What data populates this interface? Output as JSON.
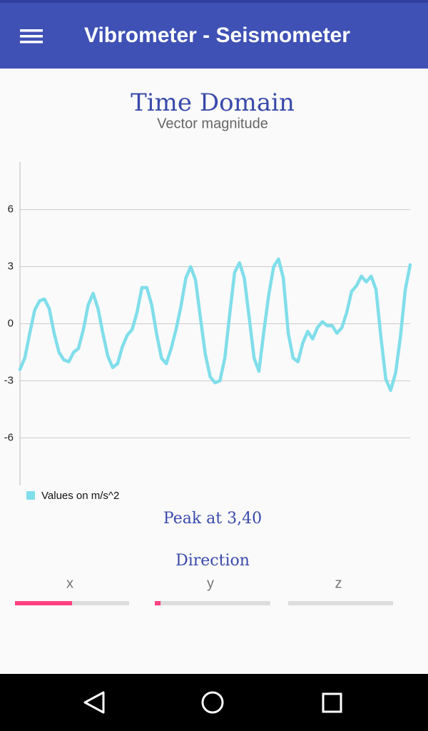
{
  "app_bar": {
    "title": "Vibrometer - Seismometer"
  },
  "chart_data": {
    "type": "line",
    "title": "Time Domain",
    "subtitle": "Vector magnitude",
    "series": [
      {
        "name": "Values on m/s^2",
        "color": "#80deea",
        "values": [
          -2.4,
          -1.8,
          -0.5,
          0.7,
          1.2,
          1.3,
          0.8,
          -0.5,
          -1.5,
          -1.9,
          -2.0,
          -1.5,
          -1.3,
          -0.3,
          1.0,
          1.6,
          0.8,
          -0.5,
          -1.7,
          -2.3,
          -2.1,
          -1.2,
          -0.6,
          -0.3,
          0.6,
          1.9,
          1.9,
          1.0,
          -0.5,
          -1.8,
          -2.1,
          -1.3,
          -0.3,
          0.9,
          2.4,
          3.0,
          2.3,
          0.3,
          -1.6,
          -2.8,
          -3.1,
          -3.0,
          -1.8,
          0.5,
          2.7,
          3.2,
          2.4,
          0.3,
          -1.8,
          -2.5,
          -0.4,
          1.5,
          3.0,
          3.4,
          2.4,
          -0.5,
          -1.8,
          -2.0,
          -1.0,
          -0.4,
          -0.8,
          -0.2,
          0.1,
          -0.1,
          -0.1,
          -0.5,
          -0.2,
          0.6,
          1.7,
          2.0,
          2.5,
          2.2,
          2.5,
          1.8,
          -0.7,
          -2.9,
          -3.5,
          -2.6,
          -0.7,
          1.8,
          3.1
        ]
      }
    ],
    "ylim": [
      -8.5,
      8.5
    ],
    "yticks": [
      -6,
      -3,
      0,
      3,
      6
    ],
    "grid": true,
    "legend": "bottom-left"
  },
  "peak": "Peak at 3,40",
  "direction": {
    "title": "Direction",
    "lim": [
      0,
      100
    ],
    "color": "#ff4081",
    "axes": [
      {
        "label": "x",
        "value": 50
      },
      {
        "label": "y",
        "value": 5
      },
      {
        "label": "z",
        "value": 0
      }
    ]
  }
}
